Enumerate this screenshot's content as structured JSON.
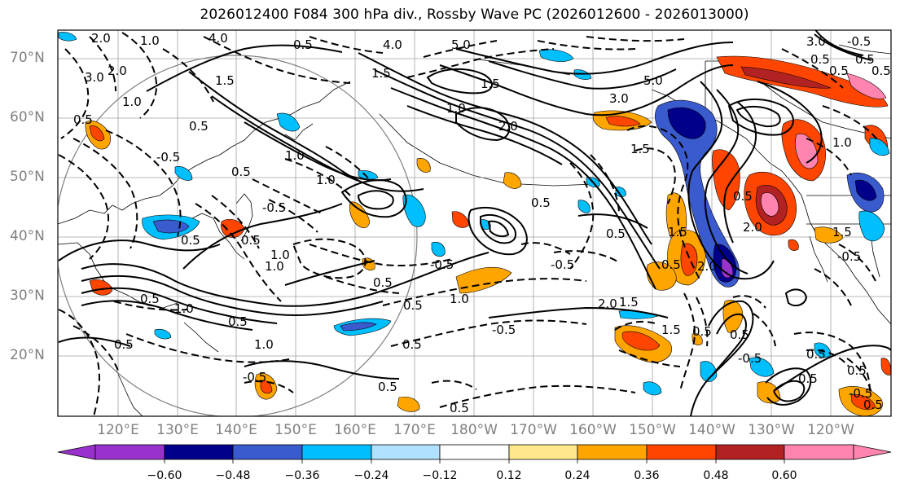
{
  "title": "2026012400 F084 300 hPa div., Rossby Wave PC (2026012600 - 2026013000)",
  "lat_labels": [
    "70°N",
    "60°N",
    "50°N",
    "40°N",
    "30°N",
    "20°N"
  ],
  "lon_labels": [
    "120°E",
    "130°E",
    "140°E",
    "150°E",
    "160°E",
    "170°E",
    "180°W",
    "170°W",
    "160°W",
    "150°W",
    "140°W",
    "130°W",
    "120°W"
  ],
  "colorbar": {
    "colors": [
      "#9932cc",
      "#00008b",
      "#3a5bcd",
      "#00bfff",
      "#b0e2ff",
      "#ffffff",
      "#ffe88c",
      "#ffa500",
      "#ff4500",
      "#b22222",
      "#ff85b0"
    ],
    "tick_labels": [
      "−0.60",
      "−0.48",
      "−0.36",
      "−0.24",
      "−0.12",
      "0.12",
      "0.24",
      "0.36",
      "0.48",
      "0.60"
    ]
  },
  "contour_labels": [
    "2.0",
    "1.0",
    "4.0",
    "5.0",
    "4.0",
    "0.5",
    "3.0",
    "2.0",
    "1.5",
    "1.0",
    "1.5",
    "0.5",
    "0.5",
    "1.0",
    "1.0",
    "-0.5",
    "0.5",
    "1.0",
    "-0.5",
    "2.0",
    "1.5",
    "0.5",
    "0.5",
    "1.0",
    "1.0",
    "0.5",
    "1.0",
    "0.5",
    "-0.5",
    "0.5",
    "-0.5",
    "0.5",
    "1.0",
    "0.5",
    "2.0",
    "1.5",
    "2.0",
    "1.0",
    "0.5",
    "-0.5",
    "0.5",
    "0.5",
    "-0.5",
    "0.5",
    "1.5",
    "0.5",
    "2.0",
    "1.5",
    "0.5",
    "1.5",
    "0.5",
    "0.5",
    "-0.5",
    "0.5",
    "3.0",
    "5.0",
    "0.5",
    "1.0",
    "1.5",
    "-0.5",
    "0.5",
    "-0.5",
    "0.5",
    "0.5",
    "-0.5",
    "0.5",
    "0.5",
    "0.5",
    "0.5",
    "3.0"
  ]
}
